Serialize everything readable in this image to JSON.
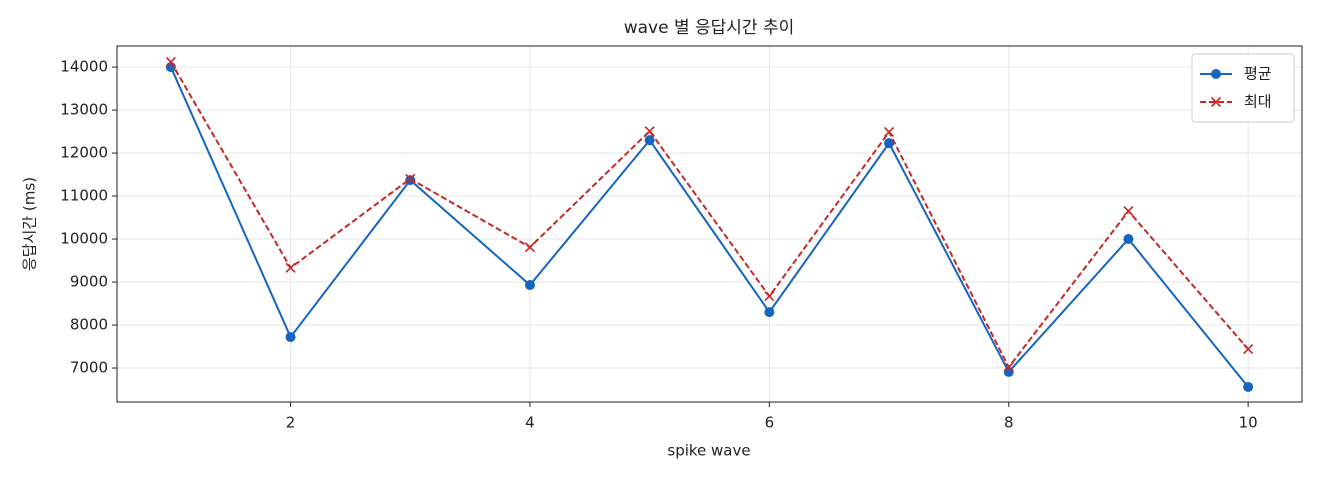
{
  "chart_data": {
    "type": "line",
    "title": "wave 별 응답시간 추이",
    "xlabel": "spike wave",
    "ylabel": "응답시간 (ms)",
    "x": [
      1,
      2,
      3,
      4,
      5,
      6,
      7,
      8,
      9,
      10
    ],
    "series": [
      {
        "name": "평균",
        "color": "#1565c0",
        "marker": "o",
        "linestyle": "solid",
        "values": [
          14000,
          7720,
          11370,
          8930,
          12300,
          8300,
          12230,
          6910,
          10000,
          6560
        ]
      },
      {
        "name": "최대",
        "color": "#c62828",
        "marker": "x",
        "linestyle": "dashed",
        "values": [
          14120,
          9330,
          11400,
          9810,
          12510,
          8670,
          12490,
          7020,
          10650,
          7440
        ]
      }
    ],
    "xlim": [
      0.55,
      10.45
    ],
    "xticks": [
      2,
      4,
      6,
      8,
      10
    ],
    "ylim": [
      6210,
      14490
    ],
    "yticks": [
      7000,
      8000,
      9000,
      10000,
      11000,
      12000,
      13000,
      14000
    ],
    "grid": true,
    "legend": "upper right"
  }
}
